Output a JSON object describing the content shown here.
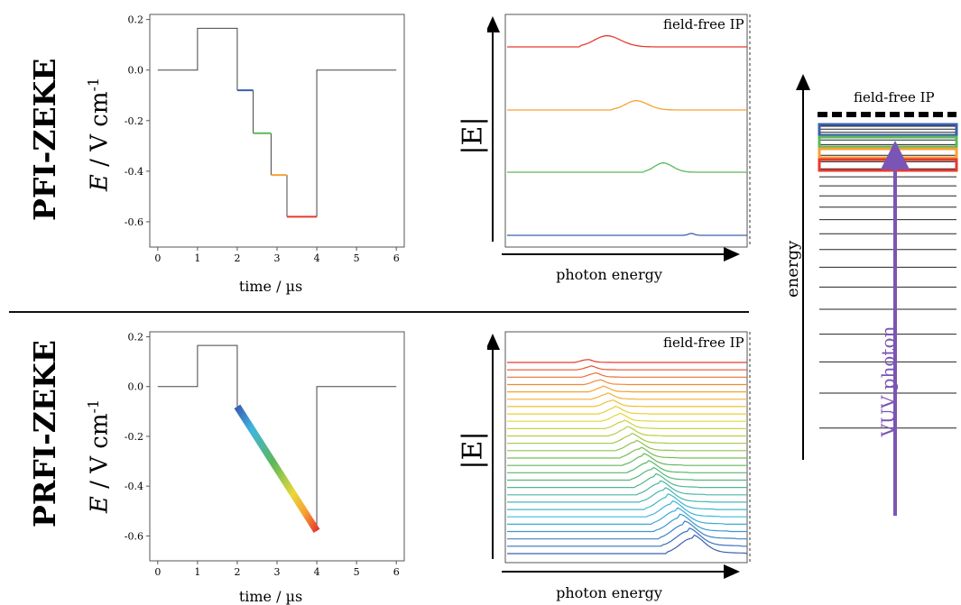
{
  "colors": {
    "red": "#e53a2e",
    "orange": "#f6a234",
    "green": "#5cb85c",
    "blue": "#3a5fb0",
    "purple": "#7a55b5",
    "axis": "#555555",
    "line": "#444444"
  },
  "top": {
    "method": "PFI-ZEKE",
    "ylabel_sym": "E",
    "ylabel_unit": "/ V cm",
    "ylabel_exp": "-1",
    "xlabel": "time / µs",
    "spectrum_ylabel": "|E|",
    "spectrum_xlabel": "photon energy",
    "ip_label": "field-free IP"
  },
  "bottom": {
    "method": "PRFI-ZEKE",
    "ylabel_sym": "E",
    "ylabel_unit": "/ V cm",
    "ylabel_exp": "-1",
    "xlabel": "time / µs",
    "spectrum_ylabel": "|E|",
    "spectrum_xlabel": "photon energy",
    "ip_label": "field-free IP"
  },
  "level_diagram": {
    "axis_label": "energy",
    "ip_label": "field-free IP",
    "photon_label": "VUV photon"
  },
  "chart_data": [
    {
      "type": "line",
      "title": "",
      "xlabel": "time / µs",
      "ylabel": "E / V cm-1",
      "xlim": [
        -0.2,
        6.2
      ],
      "ylim": [
        -0.7,
        0.22
      ],
      "xticks": [
        "0",
        "1",
        "2",
        "3",
        "4",
        "5",
        "6"
      ],
      "yticks": [
        "0.2",
        "0.0",
        "-0.2",
        "-0.4",
        "-0.6"
      ],
      "pulse": [
        [
          0,
          0
        ],
        [
          1,
          0
        ],
        [
          1,
          0.165
        ],
        [
          2,
          0.165
        ],
        [
          2,
          0
        ],
        [
          4,
          0
        ],
        [
          4,
          0
        ],
        [
          6,
          0
        ]
      ],
      "pulse_baseline": [
        [
          0,
          0
        ],
        [
          1,
          0
        ],
        [
          1,
          0.165
        ],
        [
          2,
          0.165
        ],
        [
          2,
          -0.08
        ],
        [
          4,
          -0.58
        ],
        [
          4,
          0
        ],
        [
          6,
          0
        ]
      ],
      "steps": [
        {
          "color": "blue",
          "x": [
            2.0,
            2.4
          ],
          "y": -0.08
        },
        {
          "color": "green",
          "x": [
            2.4,
            2.85
          ],
          "y": -0.25
        },
        {
          "color": "orange",
          "x": [
            2.85,
            3.25
          ],
          "y": -0.415
        },
        {
          "color": "red",
          "x": [
            3.25,
            4.0
          ],
          "y": -0.58
        }
      ]
    },
    {
      "type": "line",
      "title": "",
      "xlabel": "time / µs",
      "ylabel": "E / V cm-1",
      "xlim": [
        -0.2,
        6.2
      ],
      "ylim": [
        -0.7,
        0.22
      ],
      "xticks": [
        "0",
        "1",
        "2",
        "3",
        "4",
        "5",
        "6"
      ],
      "yticks": [
        "0.2",
        "0.0",
        "-0.2",
        "-0.4",
        "-0.6"
      ],
      "pulse": [
        [
          0,
          0
        ],
        [
          1,
          0
        ],
        [
          1,
          0.165
        ],
        [
          2,
          0.165
        ],
        [
          2,
          -0.08
        ]
      ],
      "pulse_end": [
        [
          4,
          -0.58
        ],
        [
          4,
          0
        ],
        [
          6,
          0
        ]
      ],
      "ramp": {
        "x": [
          2.0,
          4.0
        ],
        "y": [
          -0.08,
          -0.58
        ],
        "colormap": "rainbow"
      }
    },
    {
      "type": "line",
      "xlabel": "photon energy",
      "ylabel": "|E|",
      "traces": [
        {
          "color": "red",
          "peak_x": 0.43
        },
        {
          "color": "orange",
          "peak_x": 0.55
        },
        {
          "color": "green",
          "peak_x": 0.66
        },
        {
          "color": "blue",
          "peak_x": 0.77
        }
      ]
    },
    {
      "type": "line",
      "xlabel": "photon energy",
      "ylabel": "|E|",
      "trace_count": 27,
      "peak_x_range": [
        0.33,
        0.77
      ],
      "colormap": "rainbow"
    }
  ]
}
